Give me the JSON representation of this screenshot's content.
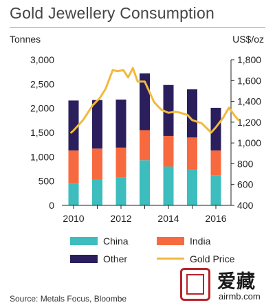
{
  "chart_data": {
    "type": "bar",
    "title": "Gold Jewellery Consumption",
    "ylabel": "Tonnes",
    "y2label": "US$/oz",
    "x_ticks": [
      "2010",
      "2012",
      "2014",
      "2016"
    ],
    "left_axis": {
      "ylim": [
        0,
        3000
      ],
      "ticks": [
        "0",
        "500",
        "1,000",
        "1,500",
        "2,000",
        "2,500",
        "3,000"
      ]
    },
    "right_axis": {
      "ylim": [
        400,
        1800
      ],
      "ticks": [
        "400",
        "600",
        "800",
        "1,000",
        "1,200",
        "1,400",
        "1,600",
        "1,800"
      ]
    },
    "categories": [
      "2010",
      "2011",
      "2012",
      "2013",
      "2014",
      "2015",
      "2016"
    ],
    "stacked": true,
    "series": [
      {
        "name": "China",
        "color": "#3dbdbd",
        "values": [
          450,
          530,
          570,
          930,
          800,
          750,
          620
        ]
      },
      {
        "name": "India",
        "color": "#f76a3f",
        "values": [
          680,
          640,
          620,
          620,
          630,
          650,
          510
        ]
      },
      {
        "name": "Other",
        "color": "#2a1f5c",
        "values": [
          1030,
          1000,
          990,
          1170,
          1050,
          990,
          880
        ]
      }
    ],
    "line_series": {
      "name": "Gold Price",
      "color": "#f2b93a",
      "axis": "right",
      "x": [
        2009.9,
        2010.0,
        2010.4,
        2010.8,
        2011.1,
        2011.35,
        2011.65,
        2011.85,
        2012.1,
        2012.3,
        2012.5,
        2012.7,
        2013.0,
        2013.4,
        2013.7,
        2014.0,
        2014.3,
        2014.5,
        2014.8,
        2015.0,
        2015.4,
        2015.8,
        2016.0,
        2016.3,
        2016.55,
        2016.8,
        2016.95
      ],
      "y": [
        1100,
        1120,
        1220,
        1360,
        1430,
        1520,
        1700,
        1690,
        1700,
        1630,
        1720,
        1590,
        1590,
        1390,
        1320,
        1290,
        1300,
        1290,
        1270,
        1220,
        1190,
        1100,
        1150,
        1240,
        1340,
        1260,
        1220
      ]
    },
    "grid": false,
    "legend_position": "bottom"
  },
  "legend": {
    "china": "China",
    "india": "India",
    "other": "Other",
    "gold_price": "Gold Price"
  },
  "source": "Source: Metals Focus, Bloombe",
  "watermark": {
    "brand": "爱藏",
    "url": "airmb.com"
  }
}
